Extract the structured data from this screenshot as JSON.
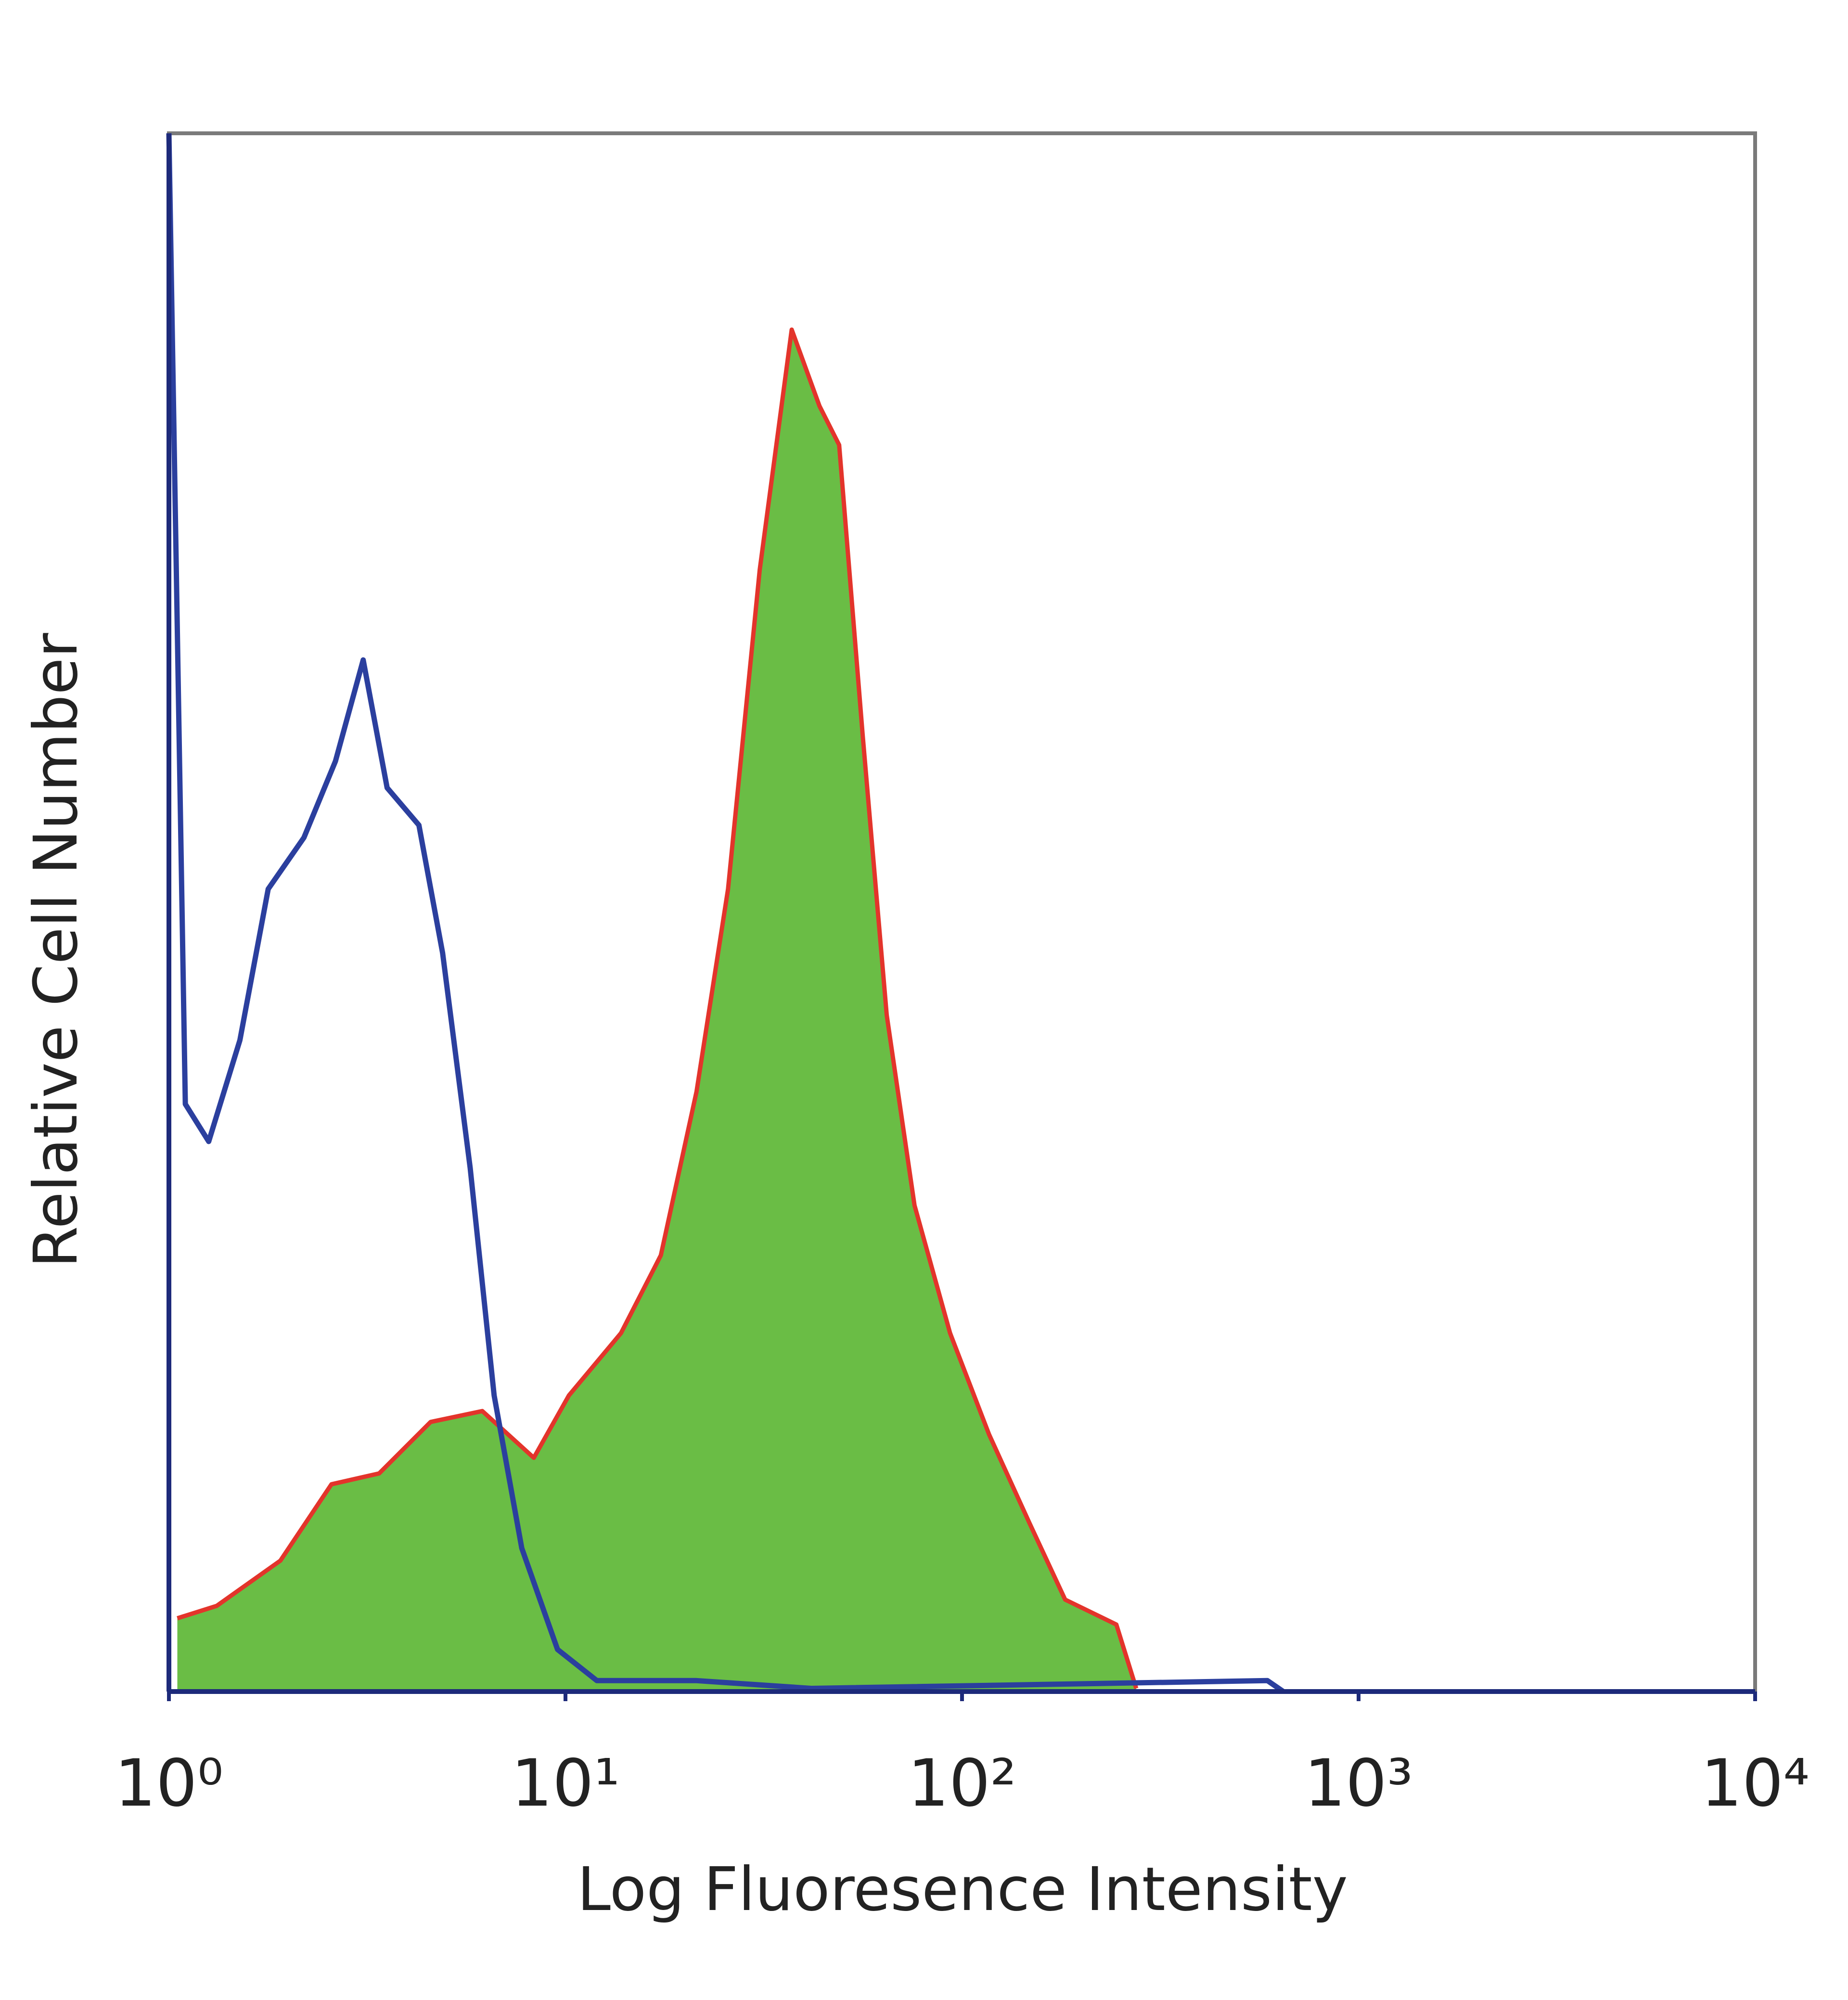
{
  "chart_data": {
    "type": "histogram-overlay",
    "xlabel": "Log Fluoresence Intensity",
    "ylabel": "Relative Cell Number",
    "xscale": "log",
    "xlim": [
      1,
      10000
    ],
    "ylim": [
      0,
      100
    ],
    "xticks": [
      {
        "value": 1,
        "label": "10⁰"
      },
      {
        "value": 10,
        "label": "10¹"
      },
      {
        "value": 100,
        "label": "10²"
      },
      {
        "value": 1000,
        "label": "10³"
      },
      {
        "value": 10000,
        "label": "10⁴"
      }
    ],
    "series": [
      {
        "color": "#6abd45",
        "edgecolor": "#e3342b",
        "filled": true,
        "x": [
          1.05,
          1.32,
          1.91,
          2.57,
          3.39,
          4.57,
          6.17,
          8.32,
          10.2,
          13.8,
          17.4,
          21.4,
          25.7,
          30.9,
          37.2,
          43.7,
          49,
          56.2,
          64.6,
          75.9,
          93.3,
          117,
          148,
          182,
          245,
          275
        ],
        "values": [
          4.7,
          5.5,
          8.4,
          13.3,
          14,
          17.3,
          18,
          15,
          19,
          23,
          28,
          38.5,
          51.5,
          72,
          87.4,
          82.5,
          80,
          61.3,
          43.4,
          31.2,
          23,
          16.5,
          10.8,
          5.9,
          4.3,
          0.2
        ]
      },
      {
        "color": "#2b3f9e",
        "filled": false,
        "x": [
          1,
          1.1,
          1.26,
          1.51,
          1.78,
          2.19,
          2.63,
          3.09,
          3.55,
          4.27,
          4.9,
          5.75,
          6.61,
          7.76,
          9.55,
          12,
          21.4,
          41.7,
          589,
          646
        ],
        "values": [
          100,
          37.7,
          35.3,
          41.8,
          51.5,
          54.8,
          59.7,
          66.2,
          58,
          55.6,
          47.4,
          33.6,
          19,
          9.2,
          2.7,
          0.7,
          0.7,
          0.2,
          0.7,
          0
        ]
      }
    ]
  }
}
